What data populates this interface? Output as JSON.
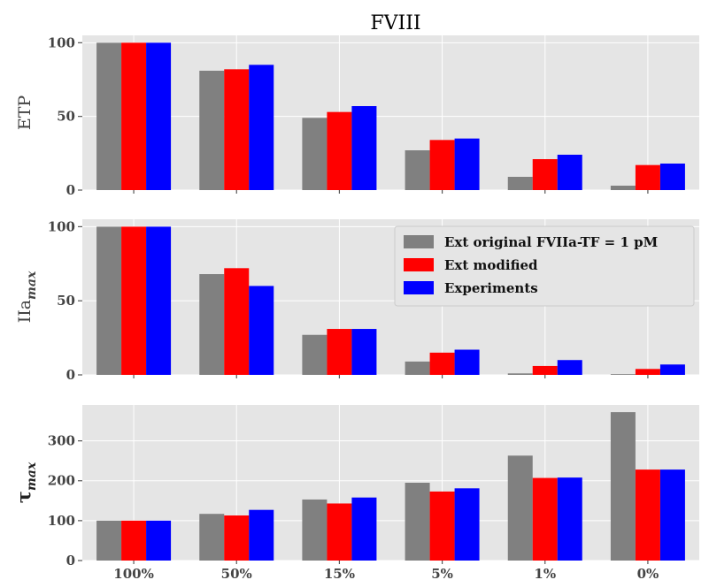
{
  "figure_title": "FVIII",
  "chart_data": [
    {
      "type": "bar",
      "title": "FVIII",
      "ylabel": "ETP",
      "categories": [
        "100%",
        "50%",
        "15%",
        "5%",
        "1%",
        "0%"
      ],
      "series": [
        {
          "name": "Ext original FVIIa-TF = 1 pM",
          "color": "#808080",
          "values": [
            100,
            81,
            49,
            27,
            9,
            3
          ]
        },
        {
          "name": "Ext modified",
          "color": "#ff0000",
          "values": [
            100,
            82,
            53,
            34,
            21,
            17
          ]
        },
        {
          "name": "Experiments",
          "color": "#0000ff",
          "values": [
            100,
            85,
            57,
            35,
            24,
            18
          ]
        }
      ],
      "ylim": [
        0,
        105
      ],
      "yticks": [
        0,
        50,
        100
      ],
      "grid": true,
      "legend": "none"
    },
    {
      "type": "bar",
      "ylabel": "IIa",
      "ylabel_sub": "max",
      "categories": [
        "100%",
        "50%",
        "15%",
        "5%",
        "1%",
        "0%"
      ],
      "series": [
        {
          "name": "Ext original FVIIa-TF = 1 pM",
          "color": "#808080",
          "values": [
            100,
            68,
            27,
            9,
            1,
            0.5
          ]
        },
        {
          "name": "Ext modified",
          "color": "#ff0000",
          "values": [
            100,
            72,
            31,
            15,
            6,
            4
          ]
        },
        {
          "name": "Experiments",
          "color": "#0000ff",
          "values": [
            100,
            60,
            31,
            17,
            10,
            7
          ]
        }
      ],
      "ylim": [
        0,
        105
      ],
      "yticks": [
        0,
        50,
        100
      ],
      "grid": true,
      "legend": "top-right",
      "legend_entries": [
        "Ext original FVIIa-TF = 1 pM",
        "Ext modified",
        "Experiments"
      ]
    },
    {
      "type": "bar",
      "ylabel": "τ",
      "ylabel_sub": "max",
      "categories": [
        "100%",
        "50%",
        "15%",
        "5%",
        "1%",
        "0%"
      ],
      "series": [
        {
          "name": "Ext original FVIIa-TF = 1 pM",
          "color": "#808080",
          "values": [
            100,
            117,
            153,
            195,
            263,
            372
          ]
        },
        {
          "name": "Ext modified",
          "color": "#ff0000",
          "values": [
            100,
            113,
            143,
            173,
            207,
            228
          ]
        },
        {
          "name": "Experiments",
          "color": "#0000ff",
          "values": [
            100,
            127,
            158,
            181,
            208,
            228
          ]
        }
      ],
      "ylim": [
        0,
        390
      ],
      "yticks": [
        0,
        100,
        200,
        300
      ],
      "grid": true,
      "legend": "none"
    }
  ]
}
